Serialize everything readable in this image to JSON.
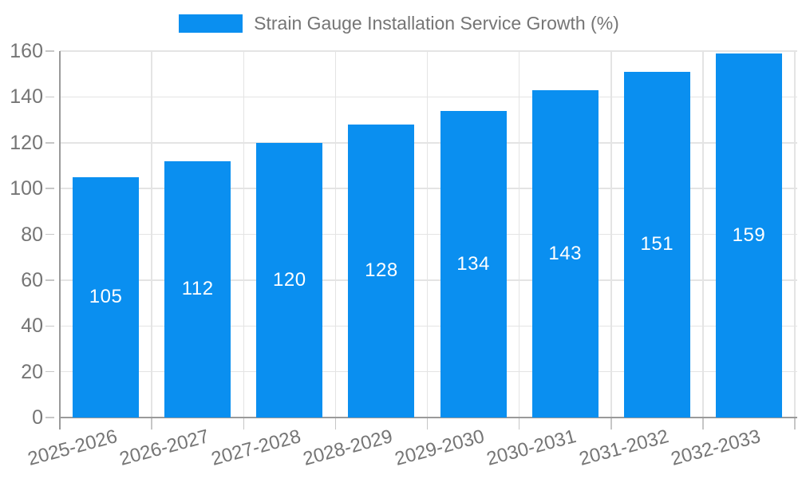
{
  "chart_data": {
    "type": "bar",
    "title": "Strain Gauge Installation Service Growth (%)",
    "categories": [
      "2025-2026",
      "2026-2027",
      "2027-2028",
      "2028-2029",
      "2029-2030",
      "2030-2031",
      "2031-2032",
      "2032-2033"
    ],
    "series": [
      {
        "name": "Strain Gauge Installation Service Growth (%)",
        "values": [
          105,
          112,
          120,
          128,
          134,
          143,
          151,
          159
        ]
      }
    ],
    "values": [
      105,
      112,
      120,
      128,
      134,
      143,
      151,
      159
    ],
    "bar_labels": [
      "105",
      "112",
      "120",
      "128",
      "134",
      "143",
      "151",
      "159"
    ],
    "xlabel": "",
    "ylabel": "",
    "ylim": [
      0,
      160
    ],
    "ytick_step": 20,
    "yticks": [
      0,
      20,
      40,
      60,
      80,
      100,
      120,
      140,
      160
    ],
    "grid": true,
    "legend_position": "top",
    "colors": {
      "bar": "#0A8FF0",
      "text": "#757575",
      "grid": "#E4E4E4",
      "axis": "#9A9A9A",
      "tick": "#C6C6C6",
      "bar_label": "#FFFFFF",
      "background": "#FFFFFF"
    }
  }
}
